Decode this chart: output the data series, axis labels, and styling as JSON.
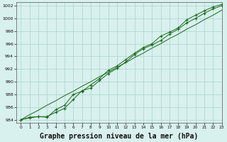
{
  "background_color": "#d8f0ee",
  "grid_color": "#aad4cc",
  "line_color": "#1a6b1a",
  "marker_color": "#1a6b1a",
  "xlabel": "Graphe pression niveau de la mer (hPa)",
  "xlabel_fontsize": 7,
  "ylim": [
    983.5,
    1002.5
  ],
  "xlim": [
    -0.5,
    23
  ],
  "yticks": [
    984,
    986,
    988,
    990,
    992,
    994,
    996,
    998,
    1000,
    1002
  ],
  "xticks": [
    0,
    1,
    2,
    3,
    4,
    5,
    6,
    7,
    8,
    9,
    10,
    11,
    12,
    13,
    14,
    15,
    16,
    17,
    18,
    19,
    20,
    21,
    22,
    23
  ],
  "series1": [
    984.0,
    984.3,
    984.5,
    984.4,
    985.6,
    986.3,
    988.0,
    988.5,
    989.5,
    990.5,
    991.8,
    992.5,
    993.5,
    994.5,
    995.4,
    996.0,
    997.2,
    997.8,
    998.5,
    999.8,
    1000.5,
    1001.2,
    1001.8,
    1002.2
  ],
  "series2": [
    984.0,
    984.4,
    984.5,
    984.5,
    985.2,
    985.8,
    987.2,
    988.6,
    989.0,
    990.2,
    991.3,
    992.1,
    993.1,
    994.3,
    995.2,
    995.8,
    996.5,
    997.5,
    998.3,
    999.3,
    1000.0,
    1000.8,
    1001.5,
    1002.0
  ],
  "series_line": [
    984.0,
    984.8,
    985.5,
    986.3,
    987.0,
    987.8,
    988.5,
    989.3,
    990.0,
    990.8,
    991.5,
    992.3,
    993.0,
    993.8,
    994.5,
    995.3,
    996.0,
    996.8,
    997.5,
    998.3,
    999.0,
    999.8,
    1000.5,
    1001.3
  ]
}
